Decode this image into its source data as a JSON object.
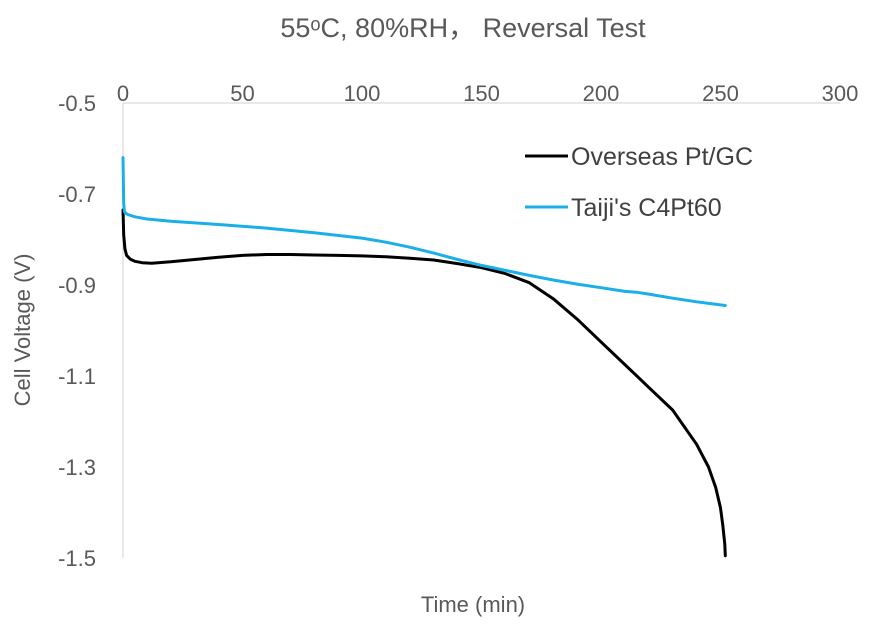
{
  "chart_data": {
    "type": "line",
    "title": "55ᵒC, 80%RH， Reversal Test",
    "xlabel": "Time (min)",
    "ylabel": "Cell Voltage (V)",
    "xlim": [
      0,
      300
    ],
    "ylim": [
      -1.5,
      -0.5
    ],
    "x_ticks": [
      "0",
      "50",
      "100",
      "150",
      "200",
      "250",
      "300"
    ],
    "y_ticks": [
      "-0.5",
      "-0.7",
      "-0.9",
      "-1.1",
      "-1.3",
      "-1.5"
    ],
    "x_axis_position": "top",
    "grid": false,
    "legend_position": "top-right",
    "series": [
      {
        "name": "Overseas Pt/GC",
        "color": "#000000",
        "x": [
          0,
          0.3,
          0.8,
          1.5,
          3,
          5,
          8,
          12,
          20,
          30,
          40,
          50,
          60,
          70,
          80,
          90,
          100,
          110,
          120,
          130,
          140,
          150,
          160,
          170,
          180,
          190,
          200,
          210,
          220,
          230,
          240,
          245,
          248,
          250,
          251,
          251.8,
          252
        ],
        "y": [
          -0.735,
          -0.79,
          -0.82,
          -0.835,
          -0.843,
          -0.848,
          -0.851,
          -0.852,
          -0.849,
          -0.844,
          -0.839,
          -0.835,
          -0.833,
          -0.833,
          -0.834,
          -0.835,
          -0.836,
          -0.838,
          -0.841,
          -0.845,
          -0.853,
          -0.862,
          -0.875,
          -0.895,
          -0.93,
          -0.975,
          -1.025,
          -1.075,
          -1.125,
          -1.175,
          -1.25,
          -1.3,
          -1.345,
          -1.39,
          -1.43,
          -1.47,
          -1.495
        ]
      },
      {
        "name": "Taiji's C4Pt60",
        "color": "#1AAFE6",
        "x": [
          0,
          0.3,
          0.6,
          1,
          2,
          5,
          10,
          20,
          40,
          60,
          80,
          100,
          110,
          120,
          130,
          140,
          150,
          160,
          170,
          180,
          190,
          200,
          210,
          215,
          220,
          230,
          240,
          252
        ],
        "y": [
          -0.62,
          -0.72,
          -0.738,
          -0.742,
          -0.745,
          -0.75,
          -0.755,
          -0.76,
          -0.767,
          -0.775,
          -0.785,
          -0.797,
          -0.806,
          -0.817,
          -0.83,
          -0.844,
          -0.857,
          -0.868,
          -0.879,
          -0.889,
          -0.898,
          -0.906,
          -0.914,
          -0.916,
          -0.92,
          -0.929,
          -0.937,
          -0.945
        ]
      }
    ]
  }
}
